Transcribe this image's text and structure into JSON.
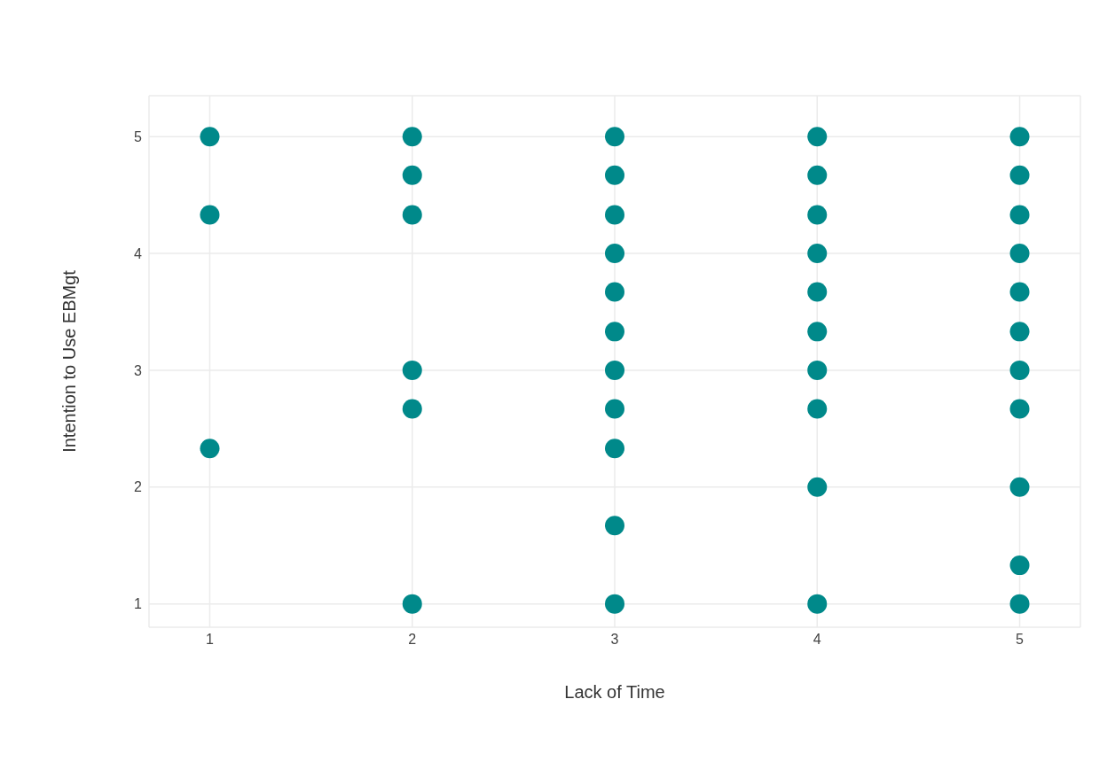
{
  "chart_data": {
    "type": "scatter",
    "xlabel": "Lack of Time",
    "ylabel": "Intention to Use EBMgt",
    "color": "#00898a",
    "marker": "circle",
    "grid": true,
    "x": [
      1,
      1,
      1,
      2,
      2,
      2,
      2,
      2,
      2,
      3,
      3,
      3,
      3,
      3,
      3,
      3,
      3,
      3,
      3,
      3,
      4,
      4,
      4,
      4,
      4,
      4,
      4,
      4,
      4,
      4,
      5,
      5,
      5,
      5,
      5,
      5,
      5,
      5,
      5,
      5,
      5
    ],
    "values": [
      5,
      4.33,
      2.33,
      5,
      4.67,
      4.33,
      3,
      2.67,
      1,
      5,
      4.67,
      4.33,
      4,
      3.67,
      3.33,
      3,
      2.67,
      2.33,
      1.67,
      1,
      5,
      4.67,
      4.33,
      4,
      3.67,
      3.33,
      3,
      2.67,
      2,
      1,
      5,
      4.67,
      4.33,
      4,
      3.67,
      3.33,
      3,
      2.67,
      2,
      1.33,
      1
    ],
    "xlim": [
      0.7,
      5.3
    ],
    "xticks": [
      1,
      2,
      3,
      4,
      5
    ],
    "ylim": [
      0.8,
      5.35
    ],
    "yticks": [
      1,
      2,
      3,
      4,
      5
    ]
  }
}
